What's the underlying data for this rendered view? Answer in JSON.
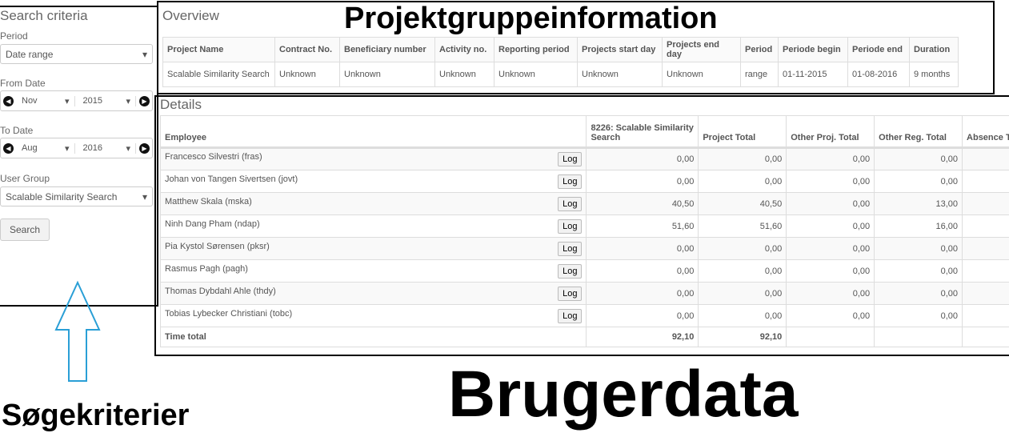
{
  "search": {
    "title": "Search criteria",
    "period_label": "Period",
    "period_value": "Date range",
    "from_label": "From Date",
    "from_month": "Nov",
    "from_year": "2015",
    "to_label": "To Date",
    "to_month": "Aug",
    "to_year": "2016",
    "group_label": "User Group",
    "group_value": "Scalable Similarity Search",
    "search_button": "Search"
  },
  "overview": {
    "title": "Overview",
    "headers": [
      "Project Name",
      "Contract No.",
      "Beneficiary number",
      "Activity no.",
      "Reporting period",
      "Projects start day",
      "Projects end day",
      "Period",
      "Periode begin",
      "Periode end",
      "Duration"
    ],
    "row": [
      "Scalable Similarity Search",
      "Unknown",
      "Unknown",
      "Unknown",
      "Unknown",
      "Unknown",
      "Unknown",
      "range",
      "01-11-2015",
      "01-08-2016",
      "9 months"
    ]
  },
  "details": {
    "title": "Details",
    "headers": [
      "Employee",
      "8226: Scalable Similarity Search",
      "Project Total",
      "Other Proj. Total",
      "Other Reg. Total",
      "Absence T"
    ],
    "log_label": "Log",
    "rows": [
      {
        "name": "Francesco Silvestri (fras)",
        "v": [
          "0,00",
          "0,00",
          "0,00",
          "0,00"
        ]
      },
      {
        "name": "Johan von Tangen Sivertsen (jovt)",
        "v": [
          "0,00",
          "0,00",
          "0,00",
          "0,00"
        ]
      },
      {
        "name": "Matthew Skala (mska)",
        "v": [
          "40,50",
          "40,50",
          "0,00",
          "13,00"
        ]
      },
      {
        "name": "Ninh Dang Pham (ndap)",
        "v": [
          "51,60",
          "51,60",
          "0,00",
          "16,00"
        ]
      },
      {
        "name": "Pia Kystol Sørensen (pksr)",
        "v": [
          "0,00",
          "0,00",
          "0,00",
          "0,00"
        ]
      },
      {
        "name": "Rasmus Pagh (pagh)",
        "v": [
          "0,00",
          "0,00",
          "0,00",
          "0,00"
        ]
      },
      {
        "name": "Thomas Dybdahl Ahle (thdy)",
        "v": [
          "0,00",
          "0,00",
          "0,00",
          "0,00"
        ]
      },
      {
        "name": "Tobias Lybecker Christiani (tobc)",
        "v": [
          "0,00",
          "0,00",
          "0,00",
          "0,00"
        ]
      }
    ],
    "total_label": "Time total",
    "total": [
      "92,10",
      "92,10",
      "",
      ""
    ]
  },
  "annotations": {
    "project": "Projektgruppeinformation",
    "user": "Brugerdata",
    "search": "Søgekriterier"
  },
  "colors": {
    "annotation_arrow": "#2a9fd6",
    "frame": "#000000"
  }
}
